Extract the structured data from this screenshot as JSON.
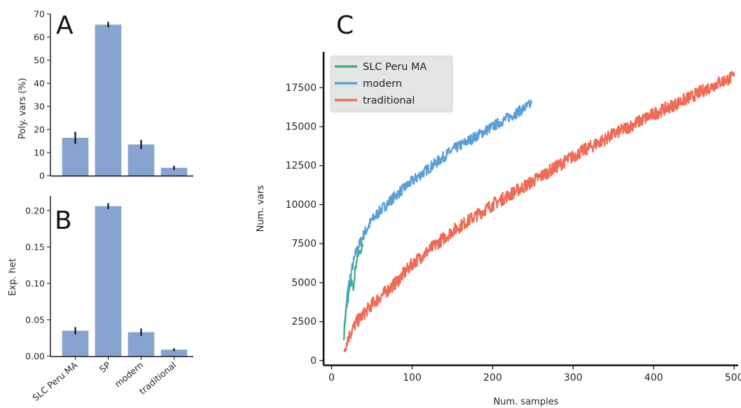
{
  "colors": {
    "bar": "#87a3cf",
    "error": "#111111",
    "axis": "#111111",
    "SLC Peru MA": "#3aaf7c",
    "modern": "#5b9fd6",
    "traditional": "#ef6b55",
    "legend_bg": "#e3e6e3"
  },
  "panels": {
    "A": "A",
    "B": "B",
    "C": "C"
  },
  "chart_data": [
    {
      "id": "A",
      "type": "bar",
      "categories": [
        "SLC Peru MA",
        "SP",
        "modern",
        "traditional"
      ],
      "values": [
        16.4,
        65.4,
        13.5,
        3.4
      ],
      "errors": [
        2.6,
        1.2,
        2.0,
        0.9
      ],
      "ylabel": "Poly. vars (%)",
      "ylim": [
        0,
        70
      ],
      "yticks": [
        "0",
        "10",
        "20",
        "30",
        "40",
        "50",
        "60",
        "70"
      ],
      "ytick_values": [
        0,
        10,
        20,
        30,
        40,
        50,
        60,
        70
      ],
      "grid": false
    },
    {
      "id": "B",
      "type": "bar",
      "categories": [
        "SLC Peru MA",
        "SP",
        "modern",
        "traditional"
      ],
      "values": [
        0.035,
        0.206,
        0.033,
        0.009
      ],
      "errors": [
        0.005,
        0.004,
        0.005,
        0.002
      ],
      "ylabel": "Exp. het",
      "ylim": [
        0,
        0.22
      ],
      "yticks": [
        "0.00",
        "0.05",
        "0.10",
        "0.15",
        "0.20"
      ],
      "ytick_values": [
        0,
        0.05,
        0.1,
        0.15,
        0.2
      ],
      "xtick_labels": [
        "SLC Peru MA",
        "SP",
        "modern",
        "traditional"
      ],
      "grid": false
    },
    {
      "id": "C",
      "type": "line",
      "xlabel": "Num. samples",
      "ylabel": "Num. vars",
      "xlim": [
        -10,
        505
      ],
      "ylim": [
        -300,
        19800
      ],
      "xticks": [
        "0",
        "100",
        "200",
        "300",
        "400",
        "500"
      ],
      "xtick_values": [
        0,
        100,
        200,
        300,
        400,
        500
      ],
      "yticks": [
        "0",
        "2500",
        "5000",
        "7500",
        "10000",
        "12500",
        "15000",
        "17500"
      ],
      "ytick_values": [
        0,
        2500,
        5000,
        7500,
        10000,
        12500,
        15000,
        17500
      ],
      "legend_position": "top-left",
      "grid": false,
      "series": [
        {
          "name": "SLC Peru MA",
          "x": [
            15,
            17,
            19,
            21,
            23,
            25,
            27,
            29,
            31,
            33,
            35,
            37,
            39
          ],
          "y": [
            1300,
            2700,
            3700,
            4200,
            4700,
            5200,
            4500,
            5700,
            6300,
            6800,
            7000,
            7200,
            7300
          ],
          "noise": 300
        },
        {
          "name": "modern",
          "x": [
            15,
            20,
            25,
            30,
            40,
            50,
            60,
            80,
            100,
            120,
            150,
            180,
            200,
            220,
            240,
            248
          ],
          "y": [
            1600,
            4500,
            5800,
            6900,
            8100,
            9000,
            9600,
            10600,
            11500,
            12300,
            13500,
            14400,
            15000,
            15600,
            16200,
            16450
          ],
          "noise": 350
        },
        {
          "name": "traditional",
          "x": [
            15,
            20,
            30,
            50,
            80,
            100,
            150,
            200,
            250,
            300,
            350,
            400,
            450,
            480,
            500
          ],
          "y": [
            600,
            1400,
            2400,
            3600,
            5000,
            6200,
            8300,
            10000,
            11500,
            13100,
            14500,
            15800,
            17000,
            17800,
            18200
          ],
          "noise": 420
        }
      ]
    }
  ]
}
